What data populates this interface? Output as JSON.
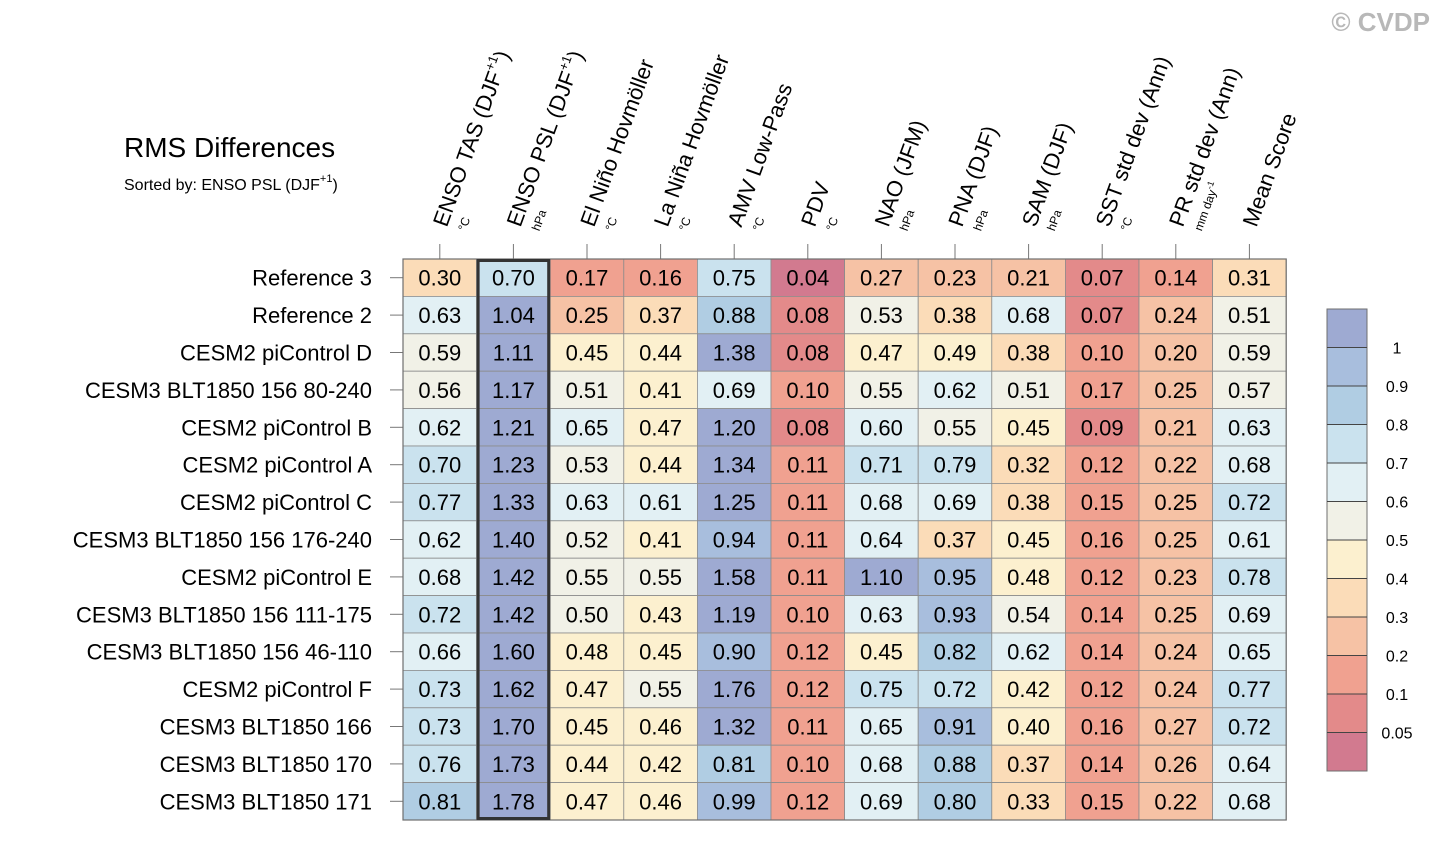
{
  "title": "RMS Differences",
  "subtitle": "Sorted by: ENSO PSL (DJF",
  "subtitle_sup": "+1",
  "subtitle_end": ")",
  "copyright": "© CVDP",
  "chart_data": {
    "type": "heatmap",
    "columns": [
      {
        "label": "ENSO TAS (DJF",
        "sup": "+1",
        "end": ")",
        "unit": "°C",
        "unit_sup": ""
      },
      {
        "label": "ENSO PSL (DJF",
        "sup": "+1",
        "end": ")",
        "unit": "hPa",
        "unit_sup": ""
      },
      {
        "label": "El Niño Hovmöller",
        "sup": "",
        "end": "",
        "unit": "°C",
        "unit_sup": ""
      },
      {
        "label": "La Niña Hovmöller",
        "sup": "",
        "end": "",
        "unit": "°C",
        "unit_sup": ""
      },
      {
        "label": "AMV Low-Pass",
        "sup": "",
        "end": "",
        "unit": "°C",
        "unit_sup": ""
      },
      {
        "label": "PDV",
        "sup": "",
        "end": "",
        "unit": "°C",
        "unit_sup": ""
      },
      {
        "label": "NAO (JFM)",
        "sup": "",
        "end": "",
        "unit": "hPa",
        "unit_sup": ""
      },
      {
        "label": "PNA (DJF)",
        "sup": "",
        "end": "",
        "unit": "hPa",
        "unit_sup": ""
      },
      {
        "label": "SAM (DJF)",
        "sup": "",
        "end": "",
        "unit": "hPa",
        "unit_sup": ""
      },
      {
        "label": "SST std dev (Ann)",
        "sup": "",
        "end": "",
        "unit": "°C",
        "unit_sup": ""
      },
      {
        "label": "PR std dev (Ann)",
        "sup": "",
        "end": "",
        "unit": "mm day",
        "unit_sup": "-1"
      },
      {
        "label": "Mean Score",
        "sup": "",
        "end": "",
        "unit": "",
        "unit_sup": ""
      }
    ],
    "rows": [
      "Reference 3",
      "Reference 2",
      "CESM2 piControl D",
      "CESM3 BLT1850 156 80-240",
      "CESM2 piControl B",
      "CESM2 piControl A",
      "CESM2 piControl C",
      "CESM3 BLT1850 156 176-240",
      "CESM2 piControl E",
      "CESM3 BLT1850 156 111-175",
      "CESM3 BLT1850 156 46-110",
      "CESM2 piControl F",
      "CESM3 BLT1850 166",
      "CESM3 BLT1850 170",
      "CESM3 BLT1850 171"
    ],
    "display_values": [
      [
        "0.30",
        "0.70",
        "0.17",
        "0.16",
        "0.75",
        "0.04",
        "0.27",
        "0.23",
        "0.21",
        "0.07",
        "0.14",
        "0.31"
      ],
      [
        "0.63",
        "1.04",
        "0.25",
        "0.37",
        "0.88",
        "0.08",
        "0.53",
        "0.38",
        "0.68",
        "0.07",
        "0.24",
        "0.51"
      ],
      [
        "0.59",
        "1.11",
        "0.45",
        "0.44",
        "1.38",
        "0.08",
        "0.47",
        "0.49",
        "0.38",
        "0.10",
        "0.20",
        "0.59"
      ],
      [
        "0.56",
        "1.17",
        "0.51",
        "0.41",
        "0.69",
        "0.10",
        "0.55",
        "0.62",
        "0.51",
        "0.17",
        "0.25",
        "0.57"
      ],
      [
        "0.62",
        "1.21",
        "0.65",
        "0.47",
        "1.20",
        "0.08",
        "0.60",
        "0.55",
        "0.45",
        "0.09",
        "0.21",
        "0.63"
      ],
      [
        "0.70",
        "1.23",
        "0.53",
        "0.44",
        "1.34",
        "0.11",
        "0.71",
        "0.79",
        "0.32",
        "0.12",
        "0.22",
        "0.68"
      ],
      [
        "0.77",
        "1.33",
        "0.63",
        "0.61",
        "1.25",
        "0.11",
        "0.68",
        "0.69",
        "0.38",
        "0.15",
        "0.25",
        "0.72"
      ],
      [
        "0.62",
        "1.40",
        "0.52",
        "0.41",
        "0.94",
        "0.11",
        "0.64",
        "0.37",
        "0.45",
        "0.16",
        "0.25",
        "0.61"
      ],
      [
        "0.68",
        "1.42",
        "0.55",
        "0.55",
        "1.58",
        "0.11",
        "1.10",
        "0.95",
        "0.48",
        "0.12",
        "0.23",
        "0.78"
      ],
      [
        "0.72",
        "1.42",
        "0.50",
        "0.43",
        "1.19",
        "0.10",
        "0.63",
        "0.93",
        "0.54",
        "0.14",
        "0.25",
        "0.69"
      ],
      [
        "0.66",
        "1.60",
        "0.48",
        "0.45",
        "0.90",
        "0.12",
        "0.45",
        "0.82",
        "0.62",
        "0.14",
        "0.24",
        "0.65"
      ],
      [
        "0.73",
        "1.62",
        "0.47",
        "0.55",
        "1.76",
        "0.12",
        "0.75",
        "0.72",
        "0.42",
        "0.12",
        "0.24",
        "0.77"
      ],
      [
        "0.73",
        "1.70",
        "0.45",
        "0.46",
        "1.32",
        "0.11",
        "0.65",
        "0.91",
        "0.40",
        "0.16",
        "0.27",
        "0.72"
      ],
      [
        "0.76",
        "1.73",
        "0.44",
        "0.42",
        "0.81",
        "0.10",
        "0.68",
        "0.88",
        "0.37",
        "0.14",
        "0.26",
        "0.64"
      ],
      [
        "0.81",
        "1.78",
        "0.47",
        "0.46",
        "0.99",
        "0.12",
        "0.69",
        "0.80",
        "0.33",
        "0.15",
        "0.22",
        "0.68"
      ]
    ],
    "highlight_column": 1,
    "colorbar": {
      "levels": [
        0.05,
        0.1,
        0.2,
        0.3,
        0.4,
        0.5,
        0.6,
        0.7,
        0.8,
        0.9,
        1
      ],
      "labels": [
        "0.05",
        "0.1",
        "0.2",
        "0.3",
        "0.4",
        "0.5",
        "0.6",
        "0.7",
        "0.8",
        "0.9",
        "1"
      ],
      "colors": [
        "#d27a8f",
        "#e38a8a",
        "#f0a190",
        "#f6c2a5",
        "#fbdcb8",
        "#fcf0cf",
        "#f1f1e7",
        "#e2f0f4",
        "#cae2ee",
        "#b0cde3",
        "#a8bedd",
        "#9eaad2"
      ]
    }
  }
}
